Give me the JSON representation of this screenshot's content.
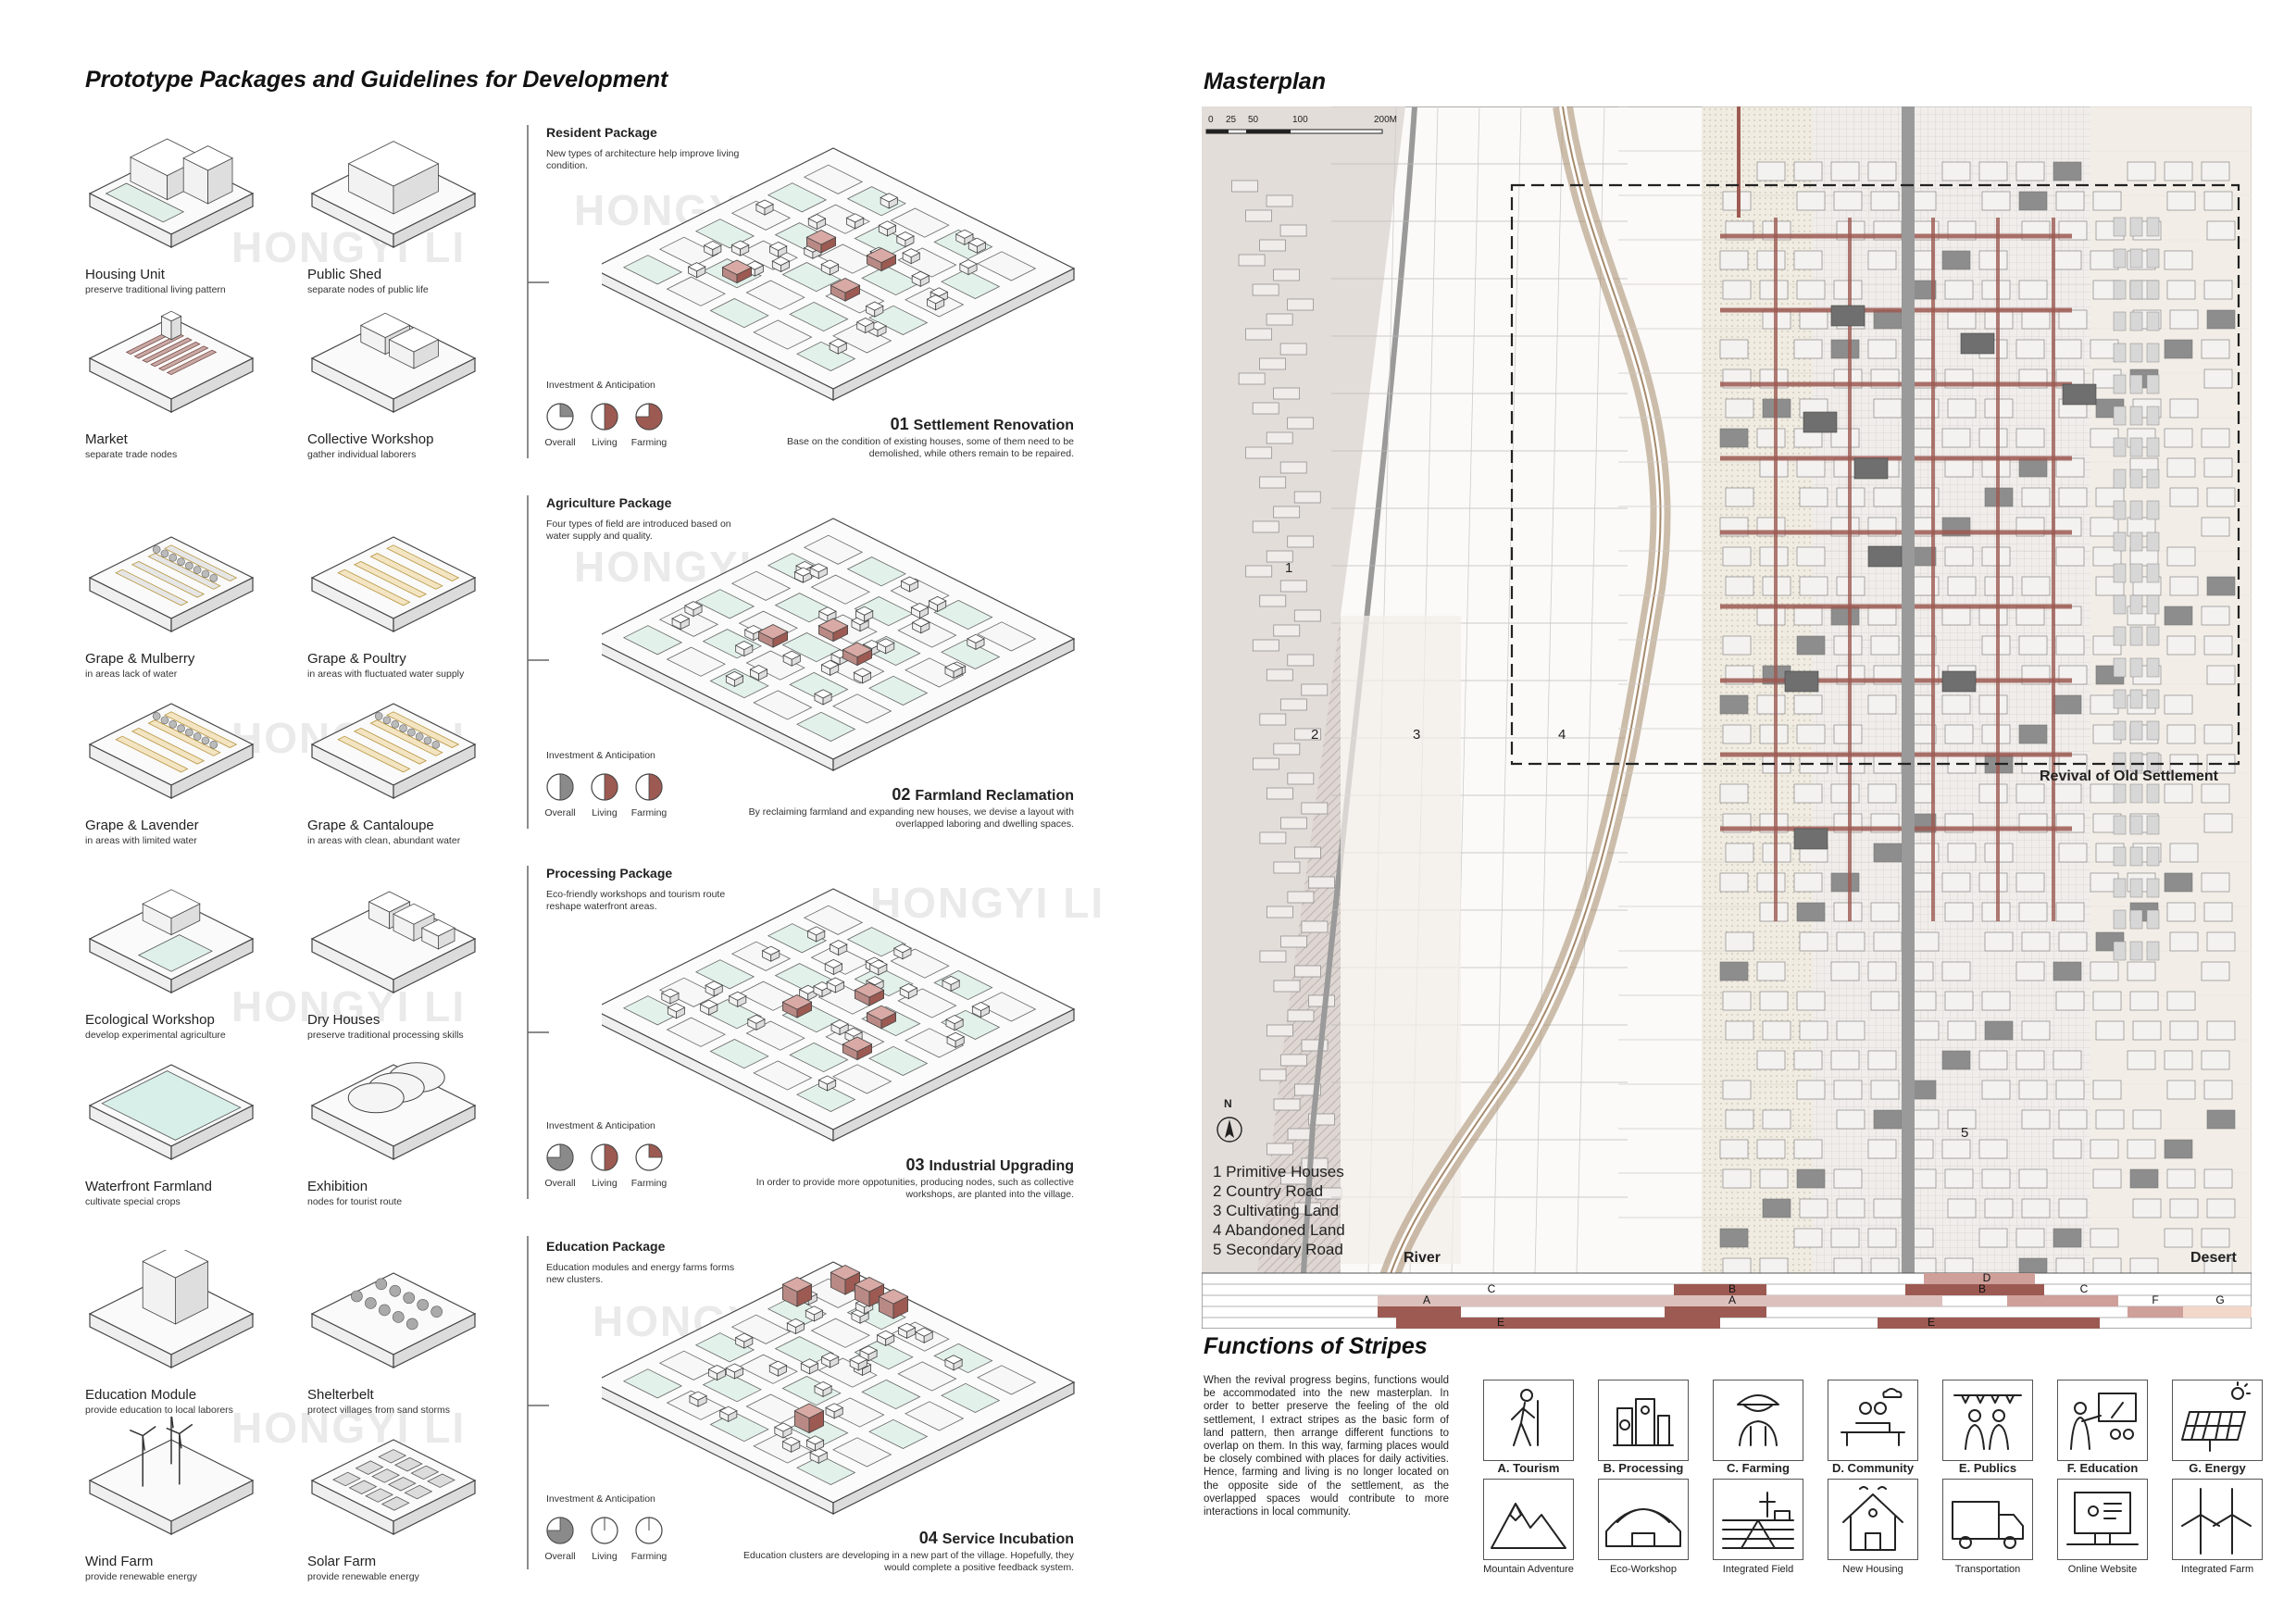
{
  "left": {
    "title": "Prototype Packages and Guidelines for Development",
    "watermark": "HONGYI LI",
    "prototypes": [
      {
        "name": "Housing Unit",
        "sub": "preserve traditional living pattern"
      },
      {
        "name": "Public Shed",
        "sub": "separate nodes of public life"
      },
      {
        "name": "Market",
        "sub": "separate trade nodes"
      },
      {
        "name": "Collective Workshop",
        "sub": "gather individual laborers"
      },
      {
        "name": "Grape & Mulberry",
        "sub": "in areas lack of water"
      },
      {
        "name": "Grape & Poultry",
        "sub": "in areas with fluctuated water supply"
      },
      {
        "name": "Grape & Lavender",
        "sub": "in areas with limited water"
      },
      {
        "name": "Grape & Cantaloupe",
        "sub": "in areas with clean, abundant water"
      },
      {
        "name": "Ecological Workshop",
        "sub": "develop experimental agriculture"
      },
      {
        "name": "Dry Houses",
        "sub": "preserve traditional processing skills"
      },
      {
        "name": "Waterfront Farmland",
        "sub": "cultivate special crops"
      },
      {
        "name": "Exhibition",
        "sub": "nodes for tourist route"
      },
      {
        "name": "Education Module",
        "sub": "provide education to local laborers"
      },
      {
        "name": "Shelterbelt",
        "sub": "protect villages from sand storms"
      },
      {
        "name": "Wind Farm",
        "sub": "provide renewable energy"
      },
      {
        "name": "Solar Farm",
        "sub": "provide renewable energy"
      }
    ],
    "investment_label": "Investment & Anticipation",
    "pie_labels": [
      "Overall",
      "Living",
      "Farming"
    ],
    "packages": [
      {
        "title": "Resident Package",
        "desc": "New types of architecture help improve living condition.",
        "num": "01",
        "head": "Settlement Renovation",
        "text": "Base on the condition of existing houses, some of them need to be demolished, while others remain to be repaired.",
        "pies": [
          0.25,
          0.5,
          0.75
        ]
      },
      {
        "title": "Agriculture Package",
        "desc": "Four types of field are introduced based on water supply and quality.",
        "num": "02",
        "head": "Farmland Reclamation",
        "text": "By reclaiming farmland and expanding new houses, we devise a layout with overlapped laboring and dwelling spaces.",
        "pies": [
          0.5,
          0.5,
          0.5
        ]
      },
      {
        "title": "Processing Package",
        "desc": "Eco-friendly workshops and tourism route reshape waterfront areas.",
        "num": "03",
        "head": "Industrial Upgrading",
        "text": "In order to provide more oppotunities, producing nodes, such as collective workshops, are planted into the village.",
        "pies": [
          0.75,
          0.5,
          0.25
        ]
      },
      {
        "title": "Education Package",
        "desc": "Education modules and energy farms forms new clusters.",
        "num": "04",
        "head": "Service Incubation",
        "text": "Education clusters are developing in a new part of the village. Hopefully, they would complete a positive feedback system.",
        "pies": [
          0.75,
          0.0,
          0.0
        ]
      }
    ]
  },
  "right": {
    "title": "Masterplan",
    "scale_labels": [
      "0",
      "25",
      "50",
      "100",
      "200M"
    ],
    "north": "N",
    "zones": [
      "1",
      "2",
      "3",
      "4",
      "5"
    ],
    "legend": [
      "1 Primitive Houses",
      "2 Country Road",
      "3 Cultivating Land",
      "4 Abandoned Land",
      "5 Secondary Road"
    ],
    "river_label": "River",
    "desert_label": "Desert",
    "revival_label": "Revival of Old Settlement",
    "stripe_letters": [
      "A",
      "B",
      "C",
      "D",
      "E",
      "F",
      "G"
    ],
    "functions_title": "Functions of Stripes",
    "functions_desc": "When the revival progress begins, functions would be accommodated into the new masterplan. In order to better preserve the feeling of the old settlement, I extract stripes as the basic form of land pattern, then arrange different functions to overlap on them. In this way, farming places would be closely combined with places for daily activities. Hence, farming and living is no longer located on the opposite side of the settlement, as the overlapped spaces would contribute to more interactions in local community.",
    "functions": [
      {
        "label": "A. Tourism",
        "icon": "hiker-icon",
        "sub": "Mountain Adventure",
        "sub_icon": "mountain-icon"
      },
      {
        "label": "B. Processing",
        "icon": "processing-icon",
        "sub": "Eco-Workshop",
        "sub_icon": "greenhouse-icon"
      },
      {
        "label": "C. Farming",
        "icon": "farmer-icon",
        "sub": "Integrated Field",
        "sub_icon": "field-icon"
      },
      {
        "label": "D. Community",
        "icon": "community-icon",
        "sub": "New Housing",
        "sub_icon": "house-icon"
      },
      {
        "label": "E. Publics",
        "icon": "people-icon",
        "sub": "Transportation",
        "sub_icon": "truck-icon"
      },
      {
        "label": "F. Education",
        "icon": "teacher-icon",
        "sub": "Online Website",
        "sub_icon": "computer-icon"
      },
      {
        "label": "G. Energy",
        "icon": "solar-panel-icon",
        "sub": "Integrated Farm",
        "sub_icon": "wind-turbine-icon"
      }
    ]
  },
  "colors": {
    "accent": "#9c5a52",
    "accent_light": "#c99590",
    "road": "#a58a6c",
    "line": "#555555"
  }
}
